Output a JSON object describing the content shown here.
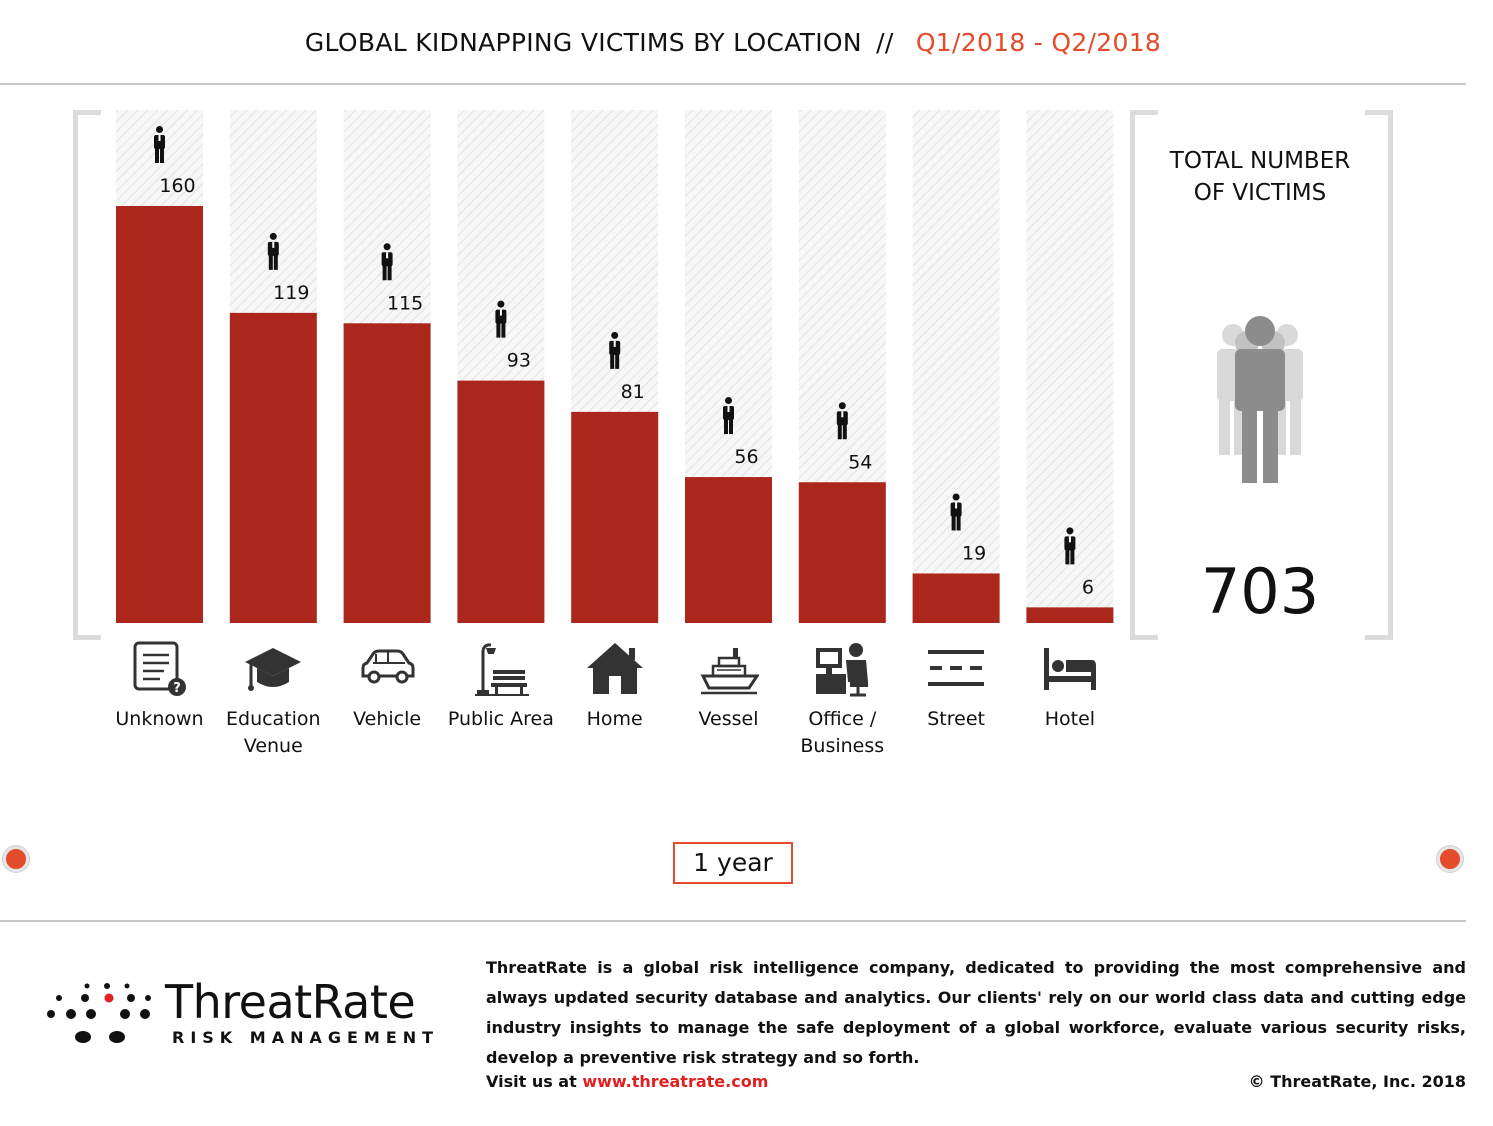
{
  "header": {
    "title": "GLOBAL KIDNAPPING VICTIMS BY LOCATION",
    "separator": "//",
    "period": "Q1/2018 - Q2/2018"
  },
  "colors": {
    "bar": "#ab271c",
    "accent": "#e34b2a",
    "bracket": "#dcdcdc",
    "link": "#e02020"
  },
  "chart_data": {
    "type": "bar",
    "title": "GLOBAL KIDNAPPING VICTIMS BY LOCATION",
    "categories": [
      "Unknown",
      "Education Venue",
      "Vehicle",
      "Public Area",
      "Home",
      "Vessel",
      "Office / Business",
      "Street",
      "Hotel"
    ],
    "values": [
      160,
      119,
      115,
      93,
      81,
      56,
      54,
      19,
      6
    ],
    "icons": [
      "document-question-icon",
      "graduation-cap-icon",
      "car-icon",
      "street-lamp-bench-icon",
      "house-icon",
      "ship-icon",
      "office-worker-icon",
      "road-icon",
      "bed-icon"
    ],
    "ylim": [
      0,
      160
    ],
    "grid": false,
    "legend": "none",
    "xlabel": "",
    "ylabel": ""
  },
  "category_labels": [
    "Unknown",
    "Education\nVenue",
    "Vehicle",
    "Public Area",
    "Home",
    "Vessel",
    "Office /\nBusiness",
    "Street",
    "Hotel"
  ],
  "total": {
    "title": "TOTAL NUMBER\nOF VICTIMS",
    "value": "703",
    "icon": "people-group-icon"
  },
  "controls": {
    "period_button": "1 year",
    "prev_icon": "prev-dot-icon",
    "next_icon": "next-dot-icon"
  },
  "footer": {
    "logo_name": "ThreatRate",
    "logo_sub": "RISK MANAGEMENT",
    "about": "ThreatRate is a global risk intelligence company, dedicated to providing the most comprehensive and always updated security database and analytics. Our clients' rely on our world class data and cutting edge industry insights to manage the safe deployment of a global workforce, evaluate various security risks, develop a preventive risk strategy and so forth.",
    "visit_label": "Visit us at",
    "visit_url": "www.threatrate.com",
    "copyright": "© ThreatRate, Inc. 2018"
  }
}
